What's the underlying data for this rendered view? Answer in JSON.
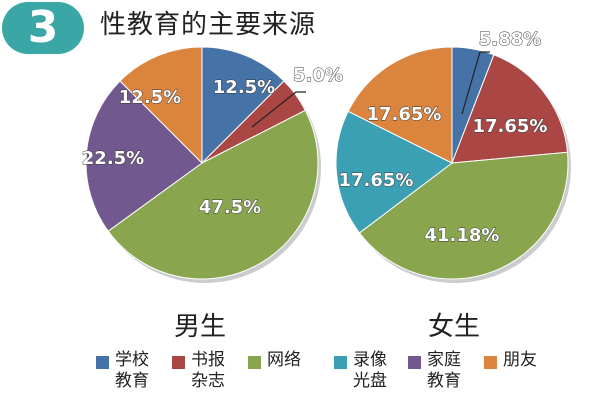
{
  "header": {
    "badge_number": "3",
    "title": "性教育的主要来源"
  },
  "chart_data": [
    {
      "type": "pie",
      "title": "男生",
      "labels": [
        "学校教育",
        "书报杂志",
        "网络",
        "录像光盘",
        "家庭教育",
        "朋友"
      ],
      "values": [
        12.5,
        5.0,
        47.5,
        0,
        22.5,
        12.5
      ],
      "value_labels": [
        "12.5%",
        "5.0%",
        "47.5%",
        "",
        "22.5%",
        "12.5%"
      ],
      "colors": [
        "#4572a7",
        "#aa4643",
        "#89a54e",
        "#3ba0b4",
        "#71588f",
        "#db843d"
      ]
    },
    {
      "type": "pie",
      "title": "女生",
      "labels": [
        "学校教育",
        "书报杂志",
        "网络",
        "录像光盘",
        "家庭教育",
        "朋友"
      ],
      "values": [
        5.88,
        17.65,
        41.18,
        17.65,
        0,
        17.65
      ],
      "value_labels": [
        "5.88%",
        "17.65%",
        "41.18%",
        "17.65%",
        "",
        "17.65%"
      ],
      "colors": [
        "#4572a7",
        "#aa4643",
        "#89a54e",
        "#3ba0b4",
        "#71588f",
        "#db843d"
      ]
    }
  ],
  "legend": [
    {
      "line1": "学校",
      "line2": "教育",
      "color": "#4572a7"
    },
    {
      "line1": "书报",
      "line2": "杂志",
      "color": "#aa4643"
    },
    {
      "line1": "网络",
      "line2": "",
      "color": "#89a54e"
    },
    {
      "line1": "录像",
      "line2": "光盘",
      "color": "#3ba0b4"
    },
    {
      "line1": "家庭",
      "line2": "教育",
      "color": "#71588f"
    },
    {
      "line1": "朋友",
      "line2": "",
      "color": "#db843d"
    }
  ]
}
